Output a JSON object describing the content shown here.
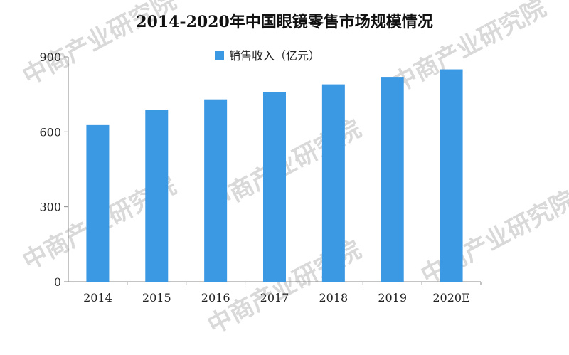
{
  "chart_data": {
    "type": "bar",
    "title": "2014-2020年中国眼镜零售市场规模情况",
    "categories": [
      "2014",
      "2015",
      "2016",
      "2017",
      "2018",
      "2019",
      "2020E"
    ],
    "series": [
      {
        "name": "销售收入（亿元）",
        "values": [
          627,
          689,
          730,
          760,
          790,
          820,
          850
        ],
        "color": "#3b98e3"
      }
    ],
    "ylim": [
      0,
      900
    ],
    "yticks": [
      0,
      300,
      600,
      900
    ],
    "grid": false,
    "legend": "top"
  },
  "watermark": {
    "text": "中商产业研究院"
  }
}
